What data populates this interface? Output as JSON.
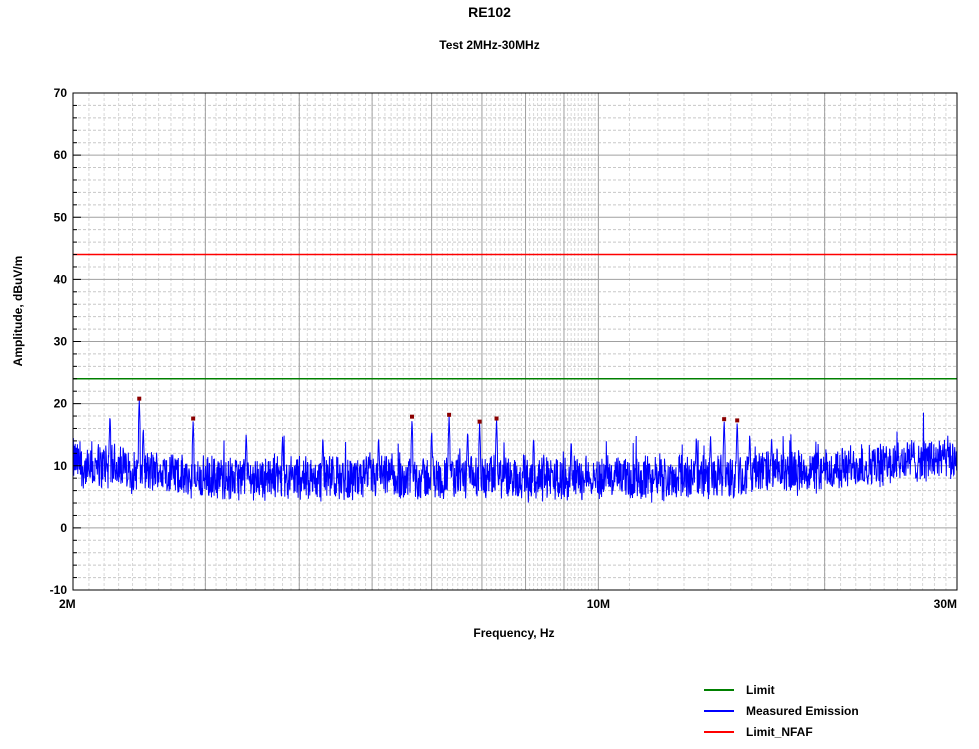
{
  "chart_data": {
    "type": "line",
    "title": "RE102",
    "subtitle": "Test 2MHz-30MHz",
    "xlabel": "Frequency, Hz",
    "ylabel": "Amplitude, dBuV/m",
    "x_scale": "log",
    "xlim": [
      2000000,
      30000000
    ],
    "ylim": [
      -10,
      70
    ],
    "x_ticks": [
      {
        "value": 2000000,
        "label": "2M"
      },
      {
        "value": 10000000,
        "label": "10M"
      },
      {
        "value": 30000000,
        "label": "30M"
      }
    ],
    "y_ticks": [
      {
        "value": -10,
        "label": "-10"
      },
      {
        "value": 0,
        "label": "0"
      },
      {
        "value": 10,
        "label": "10"
      },
      {
        "value": 20,
        "label": "20"
      },
      {
        "value": 30,
        "label": "30"
      },
      {
        "value": 40,
        "label": "40"
      },
      {
        "value": 50,
        "label": "50"
      },
      {
        "value": 60,
        "label": "60"
      },
      {
        "value": 70,
        "label": "70"
      }
    ],
    "grid": true,
    "legend_position": "bottom-right",
    "series": [
      {
        "name": "Limit",
        "color": "#008000",
        "x": [
          2000000,
          30000000
        ],
        "y": [
          24,
          24
        ]
      },
      {
        "name": "Measured Emission",
        "color": "#0000ff",
        "baseline_db": 8.5,
        "noise_db": 2.5,
        "x": [
          2000000,
          2100000,
          2200000,
          2300000,
          2400000,
          2500000,
          2600000,
          2700000,
          2800000,
          2900000,
          3000000,
          3200000,
          3400000,
          3600000,
          3800000,
          4000000,
          4300000,
          4600000,
          5000000,
          5500000,
          6000000,
          6500000,
          7000000,
          7500000,
          8000000,
          8500000,
          9000000,
          9500000,
          10000000,
          11000000,
          12000000,
          13000000,
          14000000,
          15000000,
          16000000,
          17000000,
          18000000,
          19000000,
          20000000,
          22000000,
          24000000,
          26000000,
          28000000,
          30000000
        ],
        "y": [
          11,
          9,
          10,
          10,
          9,
          9,
          9,
          9,
          8,
          8,
          8,
          8,
          8,
          8,
          8,
          8,
          8,
          8,
          8,
          8,
          8,
          8,
          8,
          8,
          8,
          8,
          8,
          8,
          8,
          8,
          8,
          8,
          8,
          8,
          9,
          9,
          9,
          9,
          9,
          10,
          10,
          11,
          11,
          11
        ]
      },
      {
        "name": "Limit_NFAF",
        "color": "#ff0000",
        "x": [
          2000000,
          30000000
        ],
        "y": [
          44,
          44
        ]
      }
    ],
    "peaks": [
      {
        "x": 2450000,
        "y": 20.8
      },
      {
        "x": 2890000,
        "y": 17.6
      },
      {
        "x": 5650000,
        "y": 17.9
      },
      {
        "x": 6330000,
        "y": 18.2
      },
      {
        "x": 6950000,
        "y": 17.1
      },
      {
        "x": 7320000,
        "y": 17.6
      },
      {
        "x": 14700000,
        "y": 17.5
      },
      {
        "x": 15300000,
        "y": 17.3
      }
    ],
    "spurs": [
      {
        "x": 2240000,
        "y": 18.5
      },
      {
        "x": 2480000,
        "y": 16.5
      },
      {
        "x": 3400000,
        "y": 15.5
      },
      {
        "x": 3800000,
        "y": 15.0
      },
      {
        "x": 4300000,
        "y": 15.0
      },
      {
        "x": 5100000,
        "y": 15.0
      },
      {
        "x": 6000000,
        "y": 16.0
      },
      {
        "x": 6700000,
        "y": 16.0
      },
      {
        "x": 8200000,
        "y": 15.0
      },
      {
        "x": 9200000,
        "y": 14.5
      },
      {
        "x": 13500000,
        "y": 15.0
      },
      {
        "x": 14100000,
        "y": 15.0
      },
      {
        "x": 15900000,
        "y": 15.5
      },
      {
        "x": 17000000,
        "y": 15.0
      }
    ]
  }
}
